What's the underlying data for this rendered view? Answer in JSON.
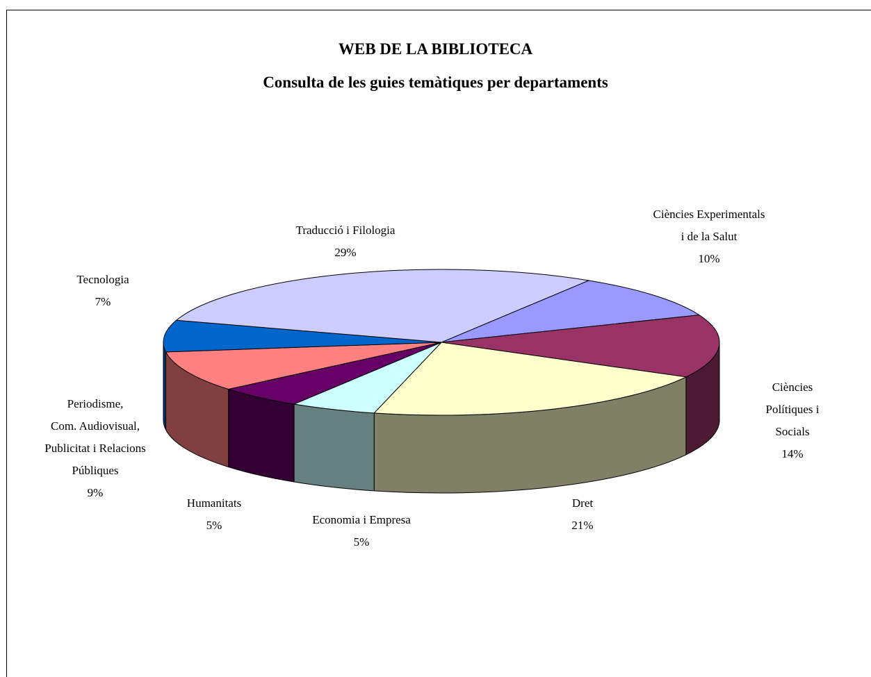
{
  "chart_data": {
    "type": "pie",
    "title": "WEB DE LA BIBLIOTECA",
    "subtitle": "Consulta de les guies temàtiques per departaments",
    "categories": [
      "Ciències Experimentals\ni de la Salut",
      "Ciències Polítiques i\nSocials",
      "Dret",
      "Economia i Empresa",
      "Humanitats",
      "Periodisme,\nCom. Audiovisual,\nPublicitat i Relacions\nPúbliques",
      "Tecnologia",
      "Traducció i Filologia"
    ],
    "values": [
      10,
      14,
      21,
      5,
      5,
      9,
      7,
      29
    ],
    "value_labels": [
      "10%",
      "14%",
      "21%",
      "5%",
      "5%",
      "9%",
      "7%",
      "29%"
    ],
    "colors": [
      "#9999ff",
      "#993366",
      "#ffffcc",
      "#ccffff",
      "#660066",
      "#ff8080",
      "#0066cc",
      "#ccccff"
    ],
    "three_d": true
  }
}
